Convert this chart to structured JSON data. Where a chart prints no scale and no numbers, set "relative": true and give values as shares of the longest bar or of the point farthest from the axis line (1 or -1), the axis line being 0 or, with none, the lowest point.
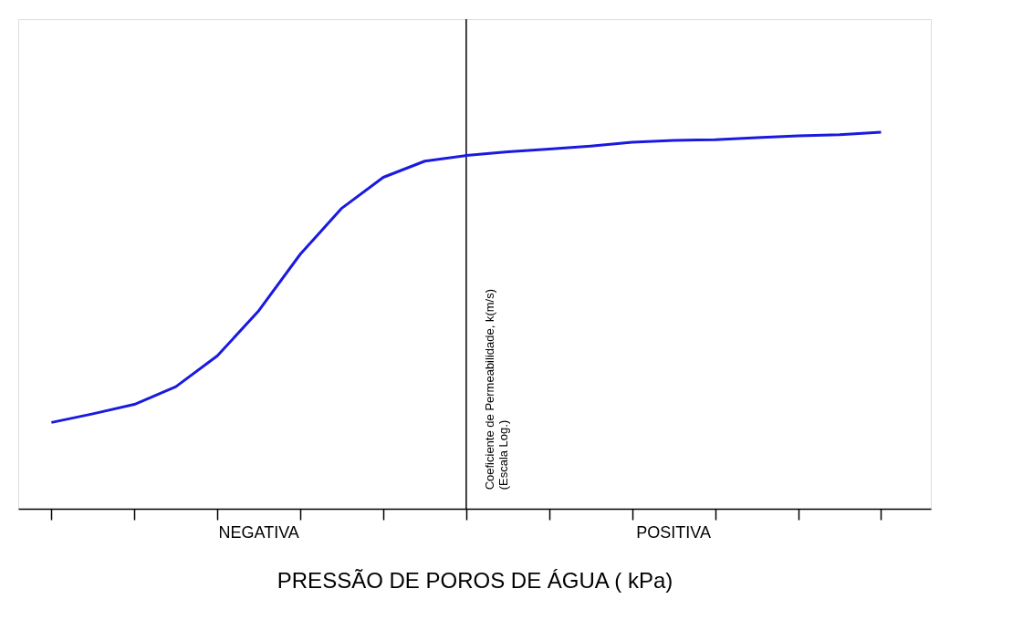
{
  "chart_data": {
    "type": "line",
    "relative": true,
    "xlabel": "PRESSÃO DE POROS DE ÁGUA  ( kPa)",
    "ylabel": "Coeficiente de Permeabilidade, k(m/s)\n(Escala Log.)",
    "categories": [
      null,
      null,
      null,
      null,
      null,
      null,
      null,
      null,
      null,
      null,
      null,
      null,
      null,
      null,
      null,
      null,
      null,
      null,
      null,
      null,
      null
    ],
    "series": [
      {
        "color": "#1a1adf",
        "values": [
          0.229,
          0.252,
          0.277,
          0.324,
          0.406,
          0.526,
          0.676,
          0.798,
          0.88,
          0.923,
          0.938,
          0.948,
          0.955,
          0.963,
          0.973,
          0.978,
          0.98,
          0.985,
          0.99,
          0.993,
          1.0
        ]
      }
    ],
    "annotations": [
      "NEGATIVA",
      "POSITIVA"
    ],
    "grid": false,
    "tick_labels": false,
    "marker": "none",
    "line_style": "solid"
  }
}
